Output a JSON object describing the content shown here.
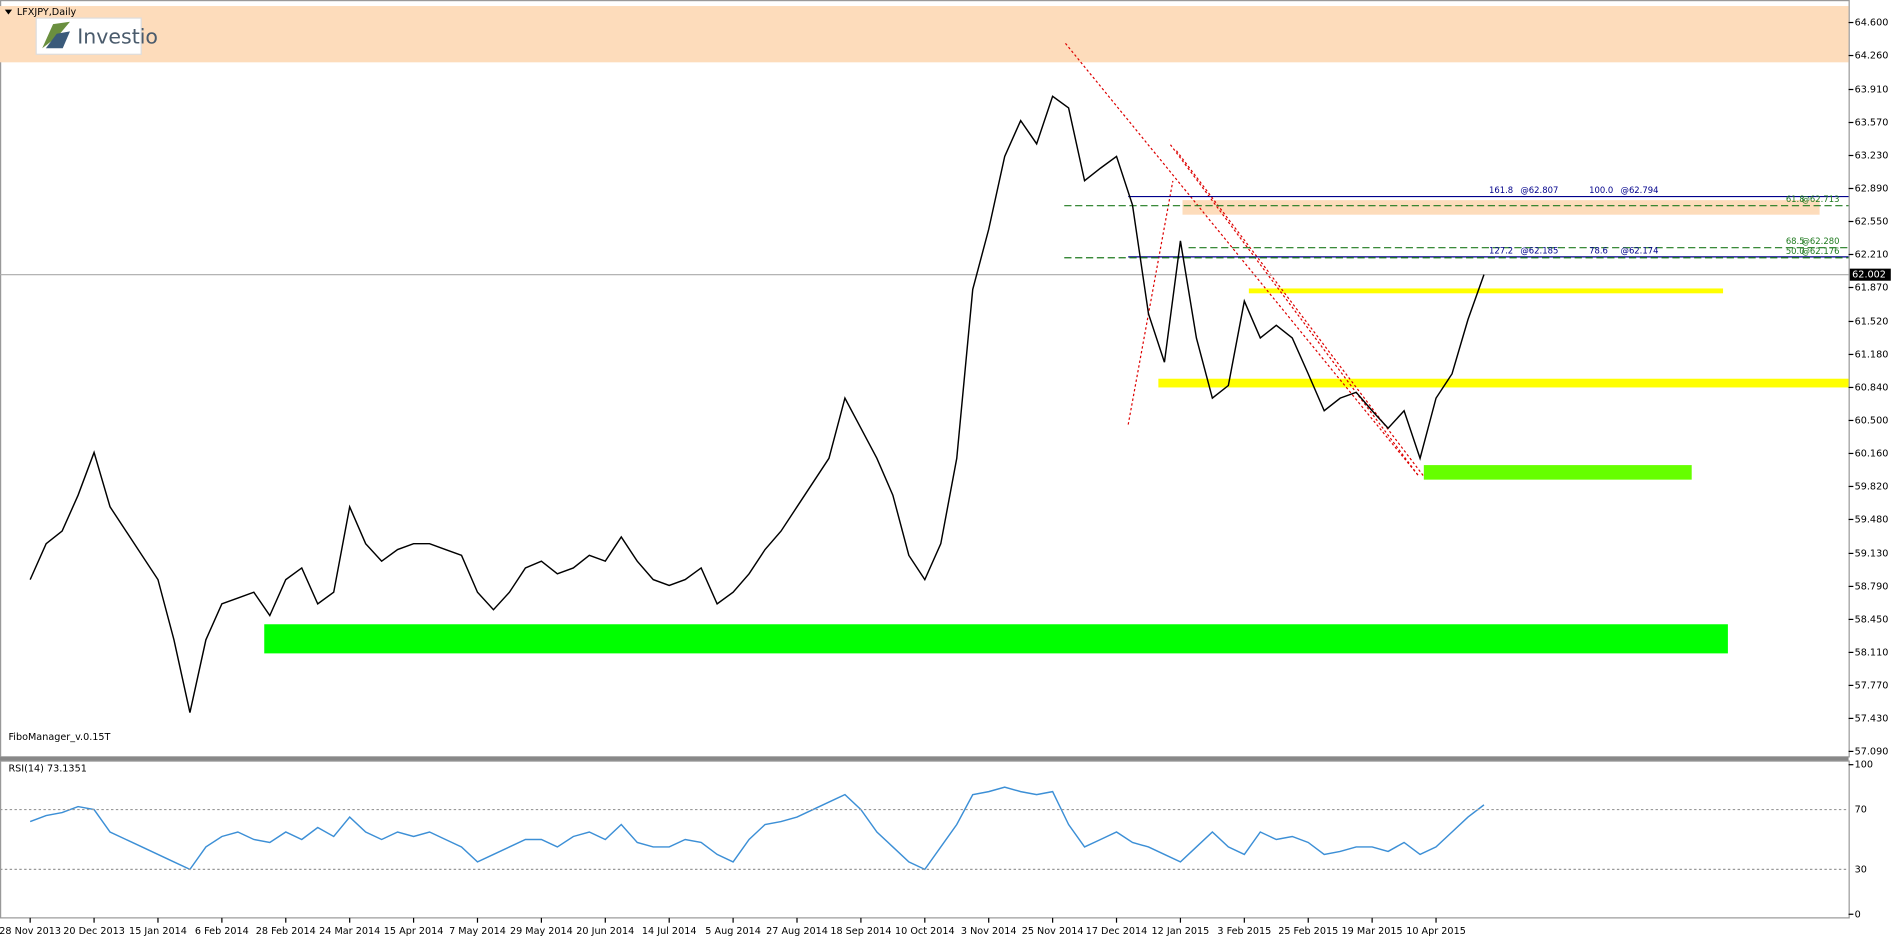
{
  "chart_data": [
    {
      "type": "line",
      "title": "LFXJPY,Daily",
      "watermark": "Investio",
      "indicator_label": "FiboManager_v.0.15T",
      "color": "#000000",
      "categories": [
        "28 Nov 2013",
        null,
        null,
        null,
        "20 Dec 2013",
        null,
        null,
        null,
        "15 Jan 2014",
        null,
        null,
        null,
        "6 Feb 2014",
        null,
        null,
        null,
        "28 Feb 2014",
        null,
        null,
        null,
        "24 Mar 2014",
        null,
        null,
        null,
        "15 Apr 2014",
        null,
        null,
        null,
        "7 May 2014",
        null,
        null,
        null,
        "29 May 2014",
        null,
        null,
        null,
        "20 Jun 2014",
        null,
        null,
        null,
        "14 Jul 2014",
        null,
        null,
        null,
        "5 Aug 2014",
        null,
        null,
        null,
        "27 Aug 2014",
        null,
        null,
        null,
        "18 Sep 2014",
        null,
        null,
        null,
        "10 Oct 2014",
        null,
        null,
        null,
        "3 Nov 2014",
        null,
        null,
        null,
        "25 Nov 2014",
        null,
        null,
        null,
        "17 Dec 2014",
        null,
        null,
        null,
        "12 Jan 2015",
        null,
        null,
        null,
        "3 Feb 2015",
        null,
        null,
        null,
        "25 Feb 2015",
        null,
        null,
        null,
        "19 Mar 2015",
        null,
        null,
        null,
        "10 Apr 2015",
        null,
        null,
        null
      ],
      "values": [
        58.86,
        59.23,
        59.36,
        59.73,
        60.17,
        59.61,
        59.36,
        59.11,
        58.86,
        58.24,
        57.49,
        58.24,
        58.61,
        58.67,
        58.73,
        58.49,
        58.86,
        58.98,
        58.61,
        58.73,
        59.61,
        59.23,
        59.05,
        59.17,
        59.23,
        59.23,
        59.17,
        59.11,
        58.73,
        58.55,
        58.73,
        58.98,
        59.05,
        58.92,
        58.98,
        59.11,
        59.05,
        59.3,
        59.05,
        58.86,
        58.8,
        58.86,
        58.98,
        58.61,
        58.73,
        58.92,
        59.17,
        59.36,
        59.61,
        59.86,
        60.11,
        60.73,
        60.42,
        60.11,
        59.73,
        59.11,
        58.86,
        59.23,
        60.11,
        61.85,
        62.47,
        63.22,
        63.59,
        63.35,
        63.84,
        63.72,
        62.97,
        63.1,
        63.22,
        62.72,
        61.6,
        61.1,
        62.35,
        61.35,
        60.73,
        60.86,
        61.73,
        61.35,
        61.48,
        61.35,
        60.98,
        60.6,
        60.73,
        60.79,
        60.6,
        60.42,
        60.6,
        60.11,
        60.73,
        60.98,
        61.54,
        62.002
      ],
      "ylim": [
        57.04,
        64.77
      ],
      "yticks": [
        {
          "value": 64.6,
          "label": "64.600"
        },
        {
          "value": 64.26,
          "label": "64.260"
        },
        {
          "value": 63.91,
          "label": "63.910"
        },
        {
          "value": 63.57,
          "label": "63.570"
        },
        {
          "value": 63.23,
          "label": "63.230"
        },
        {
          "value": 62.89,
          "label": "62.890"
        },
        {
          "value": 62.55,
          "label": "62.550"
        },
        {
          "value": 62.21,
          "label": "62.210"
        },
        {
          "value": 61.87,
          "label": "61.870"
        },
        {
          "value": 61.52,
          "label": "61.520"
        },
        {
          "value": 61.18,
          "label": "61.180"
        },
        {
          "value": 60.84,
          "label": "60.840"
        },
        {
          "value": 60.5,
          "label": "60.500"
        },
        {
          "value": 60.16,
          "label": "60.160"
        },
        {
          "value": 59.82,
          "label": "59.820"
        },
        {
          "value": 59.48,
          "label": "59.480"
        },
        {
          "value": 59.13,
          "label": "59.130"
        },
        {
          "value": 58.79,
          "label": "58.790"
        },
        {
          "value": 58.45,
          "label": "58.450"
        },
        {
          "value": 58.11,
          "label": "58.110"
        },
        {
          "value": 57.77,
          "label": "57.770"
        },
        {
          "value": 57.43,
          "label": "57.430"
        },
        {
          "value": 57.09,
          "label": "57.090"
        }
      ],
      "last_price": 62.002,
      "zones": [
        {
          "low": 64.19,
          "high": 64.77,
          "color": "#fddcbb"
        },
        {
          "low": 62.62,
          "high": 62.77,
          "color": "#fddcbb"
        },
        {
          "low": 61.81,
          "high": 61.86,
          "color": "#ffff00"
        },
        {
          "low": 60.84,
          "high": 60.93,
          "color": "#ffff00"
        },
        {
          "low": 59.89,
          "high": 60.04,
          "color": "#66ff00"
        },
        {
          "low": 58.1,
          "high": 58.4,
          "color": "#00ff00"
        }
      ],
      "fib_lines": [
        {
          "value": 62.807,
          "color": "#00008b",
          "dashed": false,
          "labels": [
            "161.8",
            "@62.807",
            "100.0",
            "@62.794"
          ]
        },
        {
          "value": 62.713,
          "color": "#1f7a1f",
          "dashed": true,
          "labels": [
            "61.8",
            "@62.713"
          ]
        },
        {
          "value": 62.28,
          "color": "#1f7a1f",
          "dashed": true,
          "labels": [
            "68.5",
            "@62.280"
          ]
        },
        {
          "value": 62.185,
          "color": "#00008b",
          "dashed": false,
          "labels": [
            "127.2",
            "@62.185",
            "78.6",
            "@62.174"
          ]
        },
        {
          "value": 62.176,
          "color": "#1f7a1f",
          "dashed": true,
          "labels": [
            "50.0",
            "@62.176"
          ]
        }
      ]
    },
    {
      "type": "line",
      "title": "RSI(14) 73.1351",
      "color": "#3c8fd6",
      "values": [
        62,
        66,
        68,
        72,
        70,
        55,
        50,
        45,
        40,
        35,
        30,
        45,
        52,
        55,
        50,
        48,
        55,
        50,
        58,
        52,
        65,
        55,
        50,
        55,
        52,
        55,
        50,
        45,
        35,
        40,
        45,
        50,
        50,
        45,
        52,
        55,
        50,
        60,
        48,
        45,
        45,
        50,
        48,
        40,
        35,
        50,
        60,
        62,
        65,
        70,
        75,
        80,
        70,
        55,
        45,
        35,
        30,
        45,
        60,
        80,
        82,
        85,
        82,
        80,
        82,
        60,
        45,
        50,
        55,
        48,
        45,
        40,
        35,
        45,
        55,
        45,
        40,
        55,
        50,
        52,
        48,
        40,
        42,
        45,
        45,
        42,
        48,
        40,
        45,
        55,
        65,
        73.1351
      ],
      "ylim": [
        0,
        100
      ],
      "yticks": [
        100,
        70,
        30,
        0
      ]
    }
  ]
}
